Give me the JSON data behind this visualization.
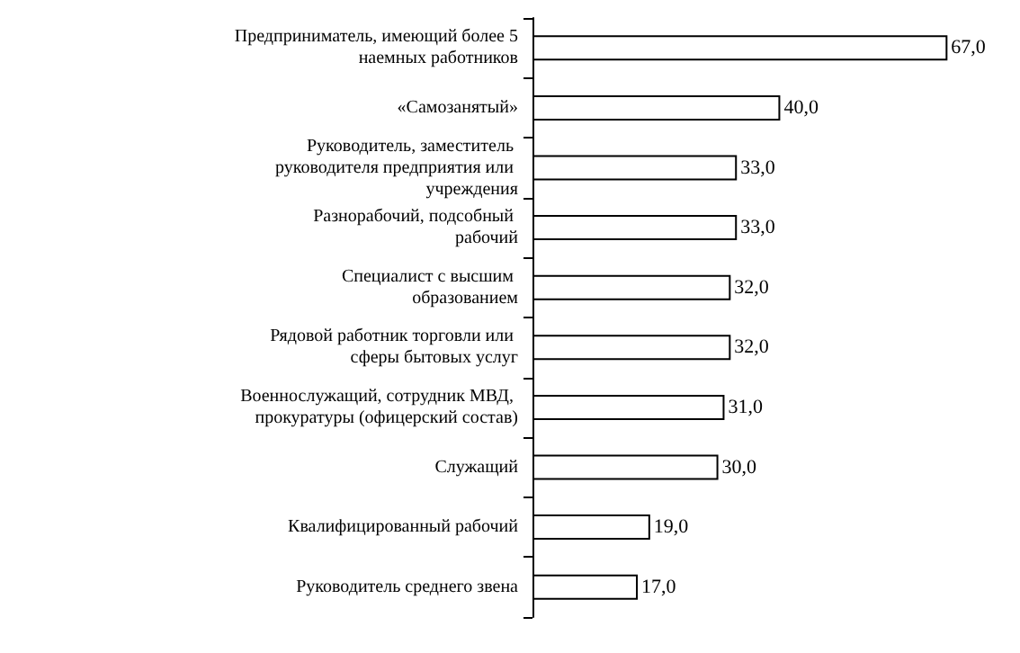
{
  "chart_data": {
    "type": "bar",
    "orientation": "horizontal",
    "color": "#ffffff",
    "categories": [
      "Предприниматель, имеющий более 5 наемных работников",
      "«Самозанятый»",
      "Руководитель, заместитель руководителя предприятия или учреждения",
      "Разнорабочий, подсобный рабочий",
      "Специалист с высшим образованием",
      "Рядовой работник торговли или сферы бытовых услуг",
      "Военнослужащий, сотрудник МВД, прокуратуры (офицерский состав)",
      "Служащий",
      "Квалифицированный рабочий",
      "Руководитель среднего звена"
    ],
    "values": [
      67,
      40,
      33,
      33,
      32,
      32,
      31,
      30,
      19,
      17
    ],
    "value_labels": [
      "67,0",
      "40,0",
      "33,0",
      "33,0",
      "32,0",
      "32,0",
      "31,0",
      "30,0",
      "19,0",
      "17,0"
    ]
  }
}
